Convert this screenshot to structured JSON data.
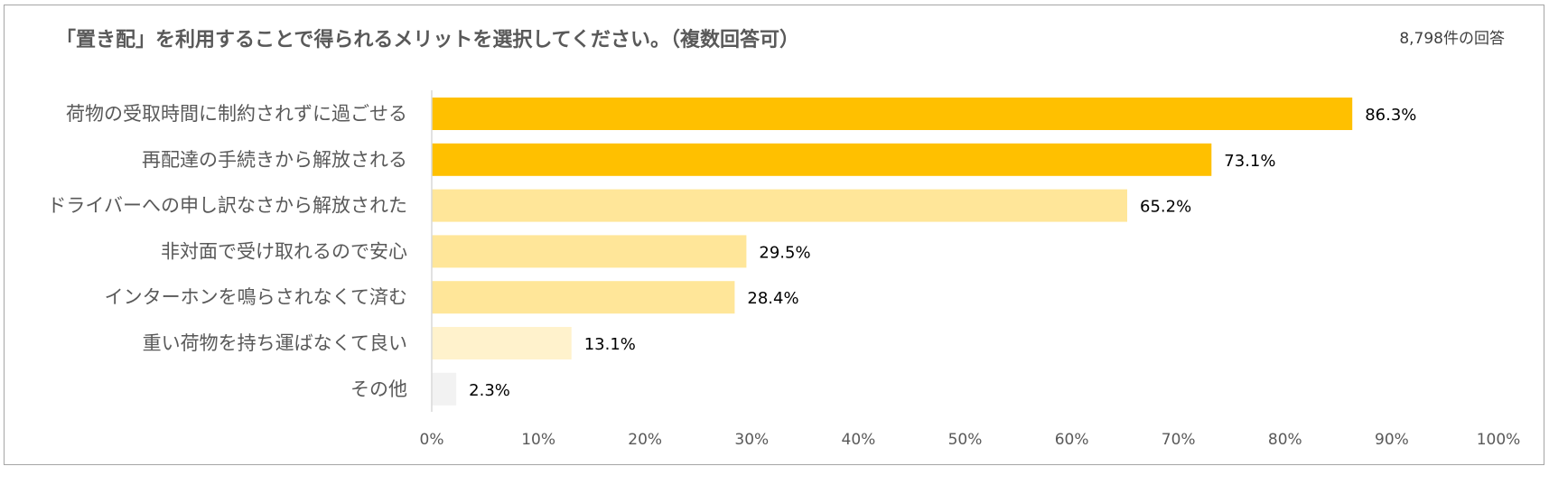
{
  "chart_data": {
    "type": "bar",
    "orientation": "horizontal",
    "title": "「置き配」を利用することで得られるメリットを選択してください。（複数回答可）",
    "annotation": "8,798件の回答",
    "categories": [
      "荷物の受取時間に制約されずに過ごせる",
      "再配達の手続きから解放される",
      "ドライバーへの申し訳なさから解放された",
      "非対面で受け取れるので安心",
      "インターホンを鳴らされなくて済む",
      "重い荷物を持ち運ばなくて良い",
      "その他"
    ],
    "values": [
      86.3,
      73.1,
      65.2,
      29.5,
      28.4,
      13.1,
      2.3
    ],
    "value_labels": [
      "86.3%",
      "73.1%",
      "65.2%",
      "29.5%",
      "28.4%",
      "13.1%",
      "2.3%"
    ],
    "colors": [
      "#FFC000",
      "#FFC000",
      "#FFE699",
      "#FFE699",
      "#FFE699",
      "#FFF2CC",
      "#F2F2F2"
    ],
    "xlim": [
      0,
      100
    ],
    "xticks": [
      "0%",
      "10%",
      "20%",
      "30%",
      "40%",
      "50%",
      "60%",
      "70%",
      "80%",
      "90%",
      "100%"
    ],
    "grid": false,
    "legend": "none"
  }
}
